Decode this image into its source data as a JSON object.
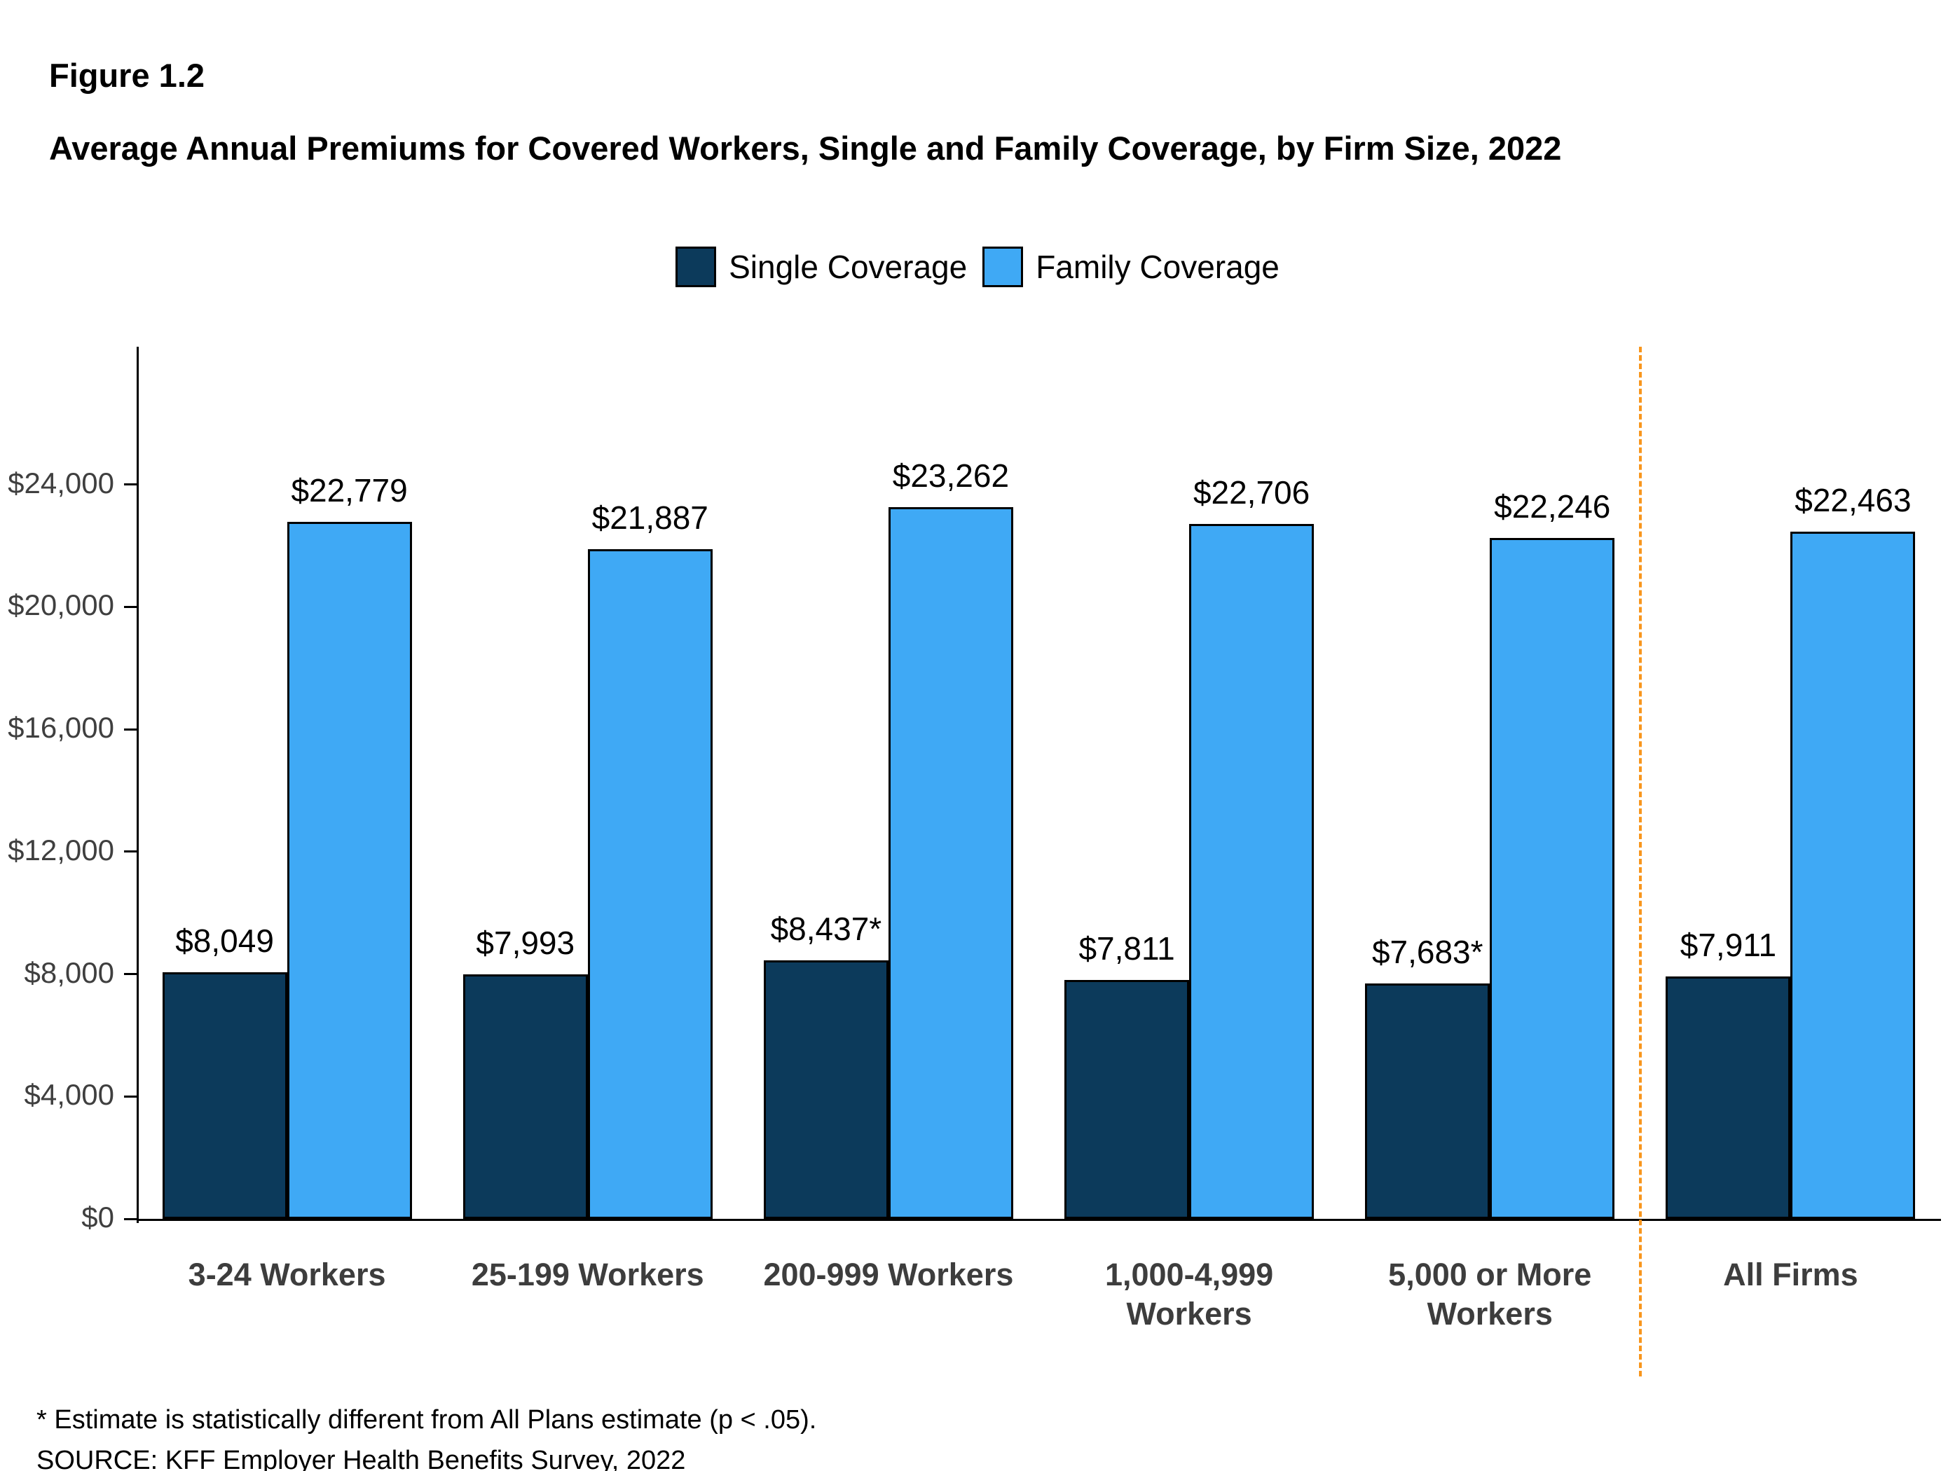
{
  "header": {
    "figure_label": "Figure 1.2",
    "title": "Average Annual Premiums for Covered Workers, Single and Family Coverage, by Firm Size, 2022"
  },
  "legend": [
    {
      "label": "Single Coverage",
      "color": "#0c3a5b"
    },
    {
      "label": "Family Coverage",
      "color": "#3fa9f5"
    }
  ],
  "chart_data": {
    "type": "bar",
    "title": "Average Annual Premiums for Covered Workers, Single and Family Coverage, by Firm Size, 2022",
    "categories": [
      "3-24 Workers",
      "25-199 Workers",
      "200-999 Workers",
      "1,000-4,999 Workers",
      "5,000 or More Workers",
      "All Firms"
    ],
    "series": [
      {
        "name": "Single Coverage",
        "color": "#0c3a5b",
        "values": [
          8049,
          7993,
          8437,
          7811,
          7683,
          7911
        ],
        "labels": [
          "$8,049",
          "$7,993",
          "$8,437*",
          "$7,811",
          "$7,683*",
          "$7,911"
        ]
      },
      {
        "name": "Family Coverage",
        "color": "#3fa9f5",
        "values": [
          22779,
          21887,
          23262,
          22706,
          22246,
          22463
        ],
        "labels": [
          "$22,779",
          "$21,887",
          "$23,262",
          "$22,706",
          "$22,246",
          "$22,463"
        ]
      }
    ],
    "xlabel": "",
    "ylabel": "",
    "ylim": [
      0,
      28500
    ],
    "yticks": [
      0,
      4000,
      8000,
      12000,
      16000,
      20000,
      24000
    ],
    "ytick_labels": [
      "$0",
      "$4,000",
      "$8,000",
      "$12,000",
      "$16,000",
      "$20,000",
      "$24,000"
    ],
    "grid": false,
    "legend_position": "top",
    "separator": {
      "after_category": "5,000 or More Workers",
      "color": "#f8961d"
    }
  },
  "footnotes": [
    "* Estimate is statistically different from All Plans estimate (p < .05).",
    "SOURCE: KFF Employer Health Benefits Survey, 2022"
  ]
}
